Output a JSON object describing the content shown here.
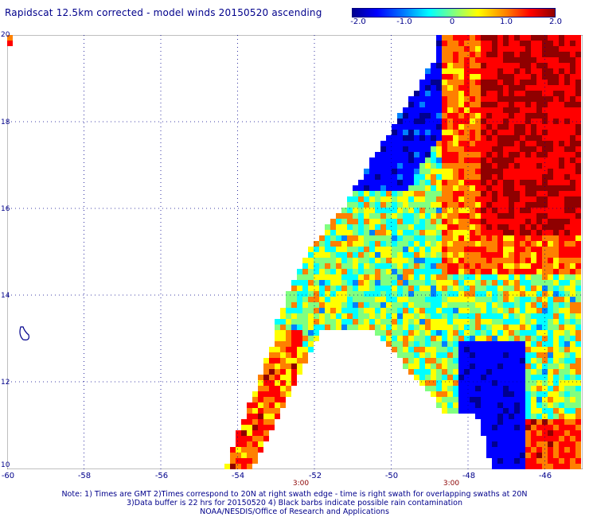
{
  "title": "Rapidscat 12.5km corrected - model winds 20150520 ascending",
  "colorbar": {
    "labels": [
      "-2.0",
      "-1.0",
      "0",
      "1.0",
      "2.0"
    ],
    "range": [
      -2.0,
      2.0
    ],
    "colors": [
      "#00008f",
      "#0000ff",
      "#0080ff",
      "#00ffff",
      "#80ff80",
      "#ffff00",
      "#ff8000",
      "#ff0000",
      "#8f0000"
    ]
  },
  "axes": {
    "lat_labels": [
      "20",
      "18",
      "16",
      "14",
      "12",
      "10"
    ],
    "lon_labels": [
      "-60",
      "-58",
      "-56",
      "-54",
      "-52",
      "-50",
      "-48",
      "-46"
    ],
    "lat_range": [
      10,
      20
    ],
    "lon_range": [
      -60,
      -45
    ]
  },
  "time_labels": [
    "3:00",
    "3:00"
  ],
  "notes": [
    "Note: 1) Times are GMT 2)Times correspond to 20N at right swath edge - time is right swath for overlapping swaths at 20N",
    "3)Data buffer is 22 hrs for 20150520 4) Black barbs indicate possible rain contamination",
    "NOAA/NESDIS/Office of Research and Applications"
  ]
}
